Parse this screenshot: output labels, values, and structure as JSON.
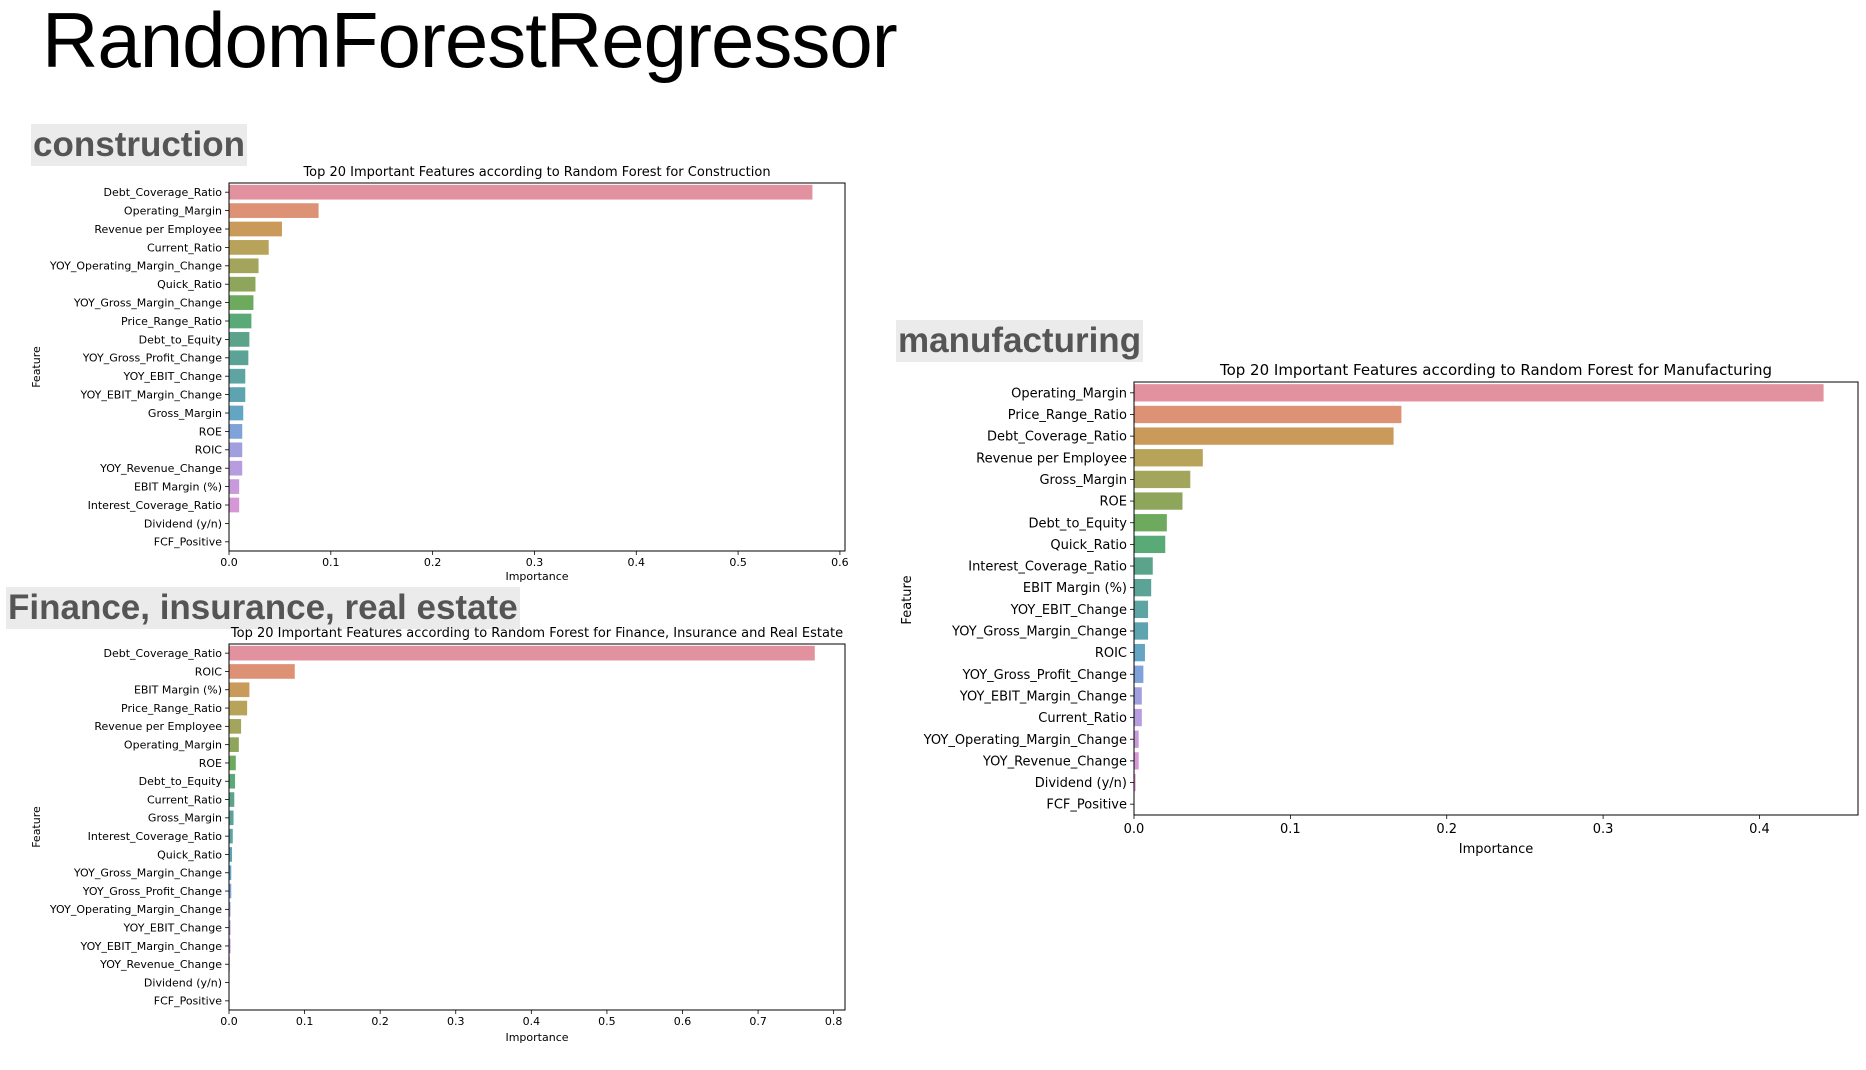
{
  "slide": {
    "title": "RandomForestRegressor"
  },
  "sections": {
    "construction": "construction",
    "finance": "Finance, insurance, real estate",
    "manufacturing": "manufacturing"
  },
  "palette": [
    "#e1929e",
    "#dd9175",
    "#c99a5a",
    "#b7a35a",
    "#a4a55d",
    "#8ea65b",
    "#6eaa5e",
    "#5aaa78",
    "#5ba48b",
    "#5ca397",
    "#5da4a3",
    "#5ea4b0",
    "#63a5c3",
    "#7fa2d8",
    "#a29fdf",
    "#b79ddf",
    "#c79adc",
    "#d597d5",
    "#dd93c8",
    "#e190b4"
  ],
  "chart_data": [
    {
      "id": "construction",
      "type": "bar",
      "orientation": "horizontal",
      "title": "Top 20 Important Features according to Random Forest for Construction",
      "xlabel": "Importance",
      "ylabel": "Feature",
      "xlim": [
        0,
        0.605
      ],
      "xticks": [
        0,
        0.1,
        0.2,
        0.3,
        0.4,
        0.5,
        0.6
      ],
      "xtick_labels": [
        "0.0",
        "0.1",
        "0.2",
        "0.3",
        "0.4",
        "0.5",
        "0.6"
      ],
      "categories": [
        "Debt_Coverage_Ratio",
        "Operating_Margin",
        "Revenue per Employee",
        "Current_Ratio",
        "YOY_Operating_Margin_Change",
        "Quick_Ratio",
        "YOY_Gross_Margin_Change",
        "Price_Range_Ratio",
        "Debt_to_Equity",
        "YOY_Gross_Profit_Change",
        "YOY_EBIT_Change",
        "YOY_EBIT_Margin_Change",
        "Gross_Margin",
        "ROE",
        "ROIC",
        "YOY_Revenue_Change",
        "EBIT Margin (%)",
        "Interest_Coverage_Ratio",
        "Dividend (y/n)",
        "FCF_Positive"
      ],
      "values": [
        0.573,
        0.088,
        0.052,
        0.039,
        0.029,
        0.026,
        0.024,
        0.022,
        0.02,
        0.019,
        0.016,
        0.016,
        0.014,
        0.013,
        0.013,
        0.013,
        0.01,
        0.01,
        0.0,
        0.0
      ]
    },
    {
      "id": "finance",
      "type": "bar",
      "orientation": "horizontal",
      "title": "Top 20 Important Features according to Random Forest for Finance, Insurance and Real Estate",
      "xlabel": "Importance",
      "ylabel": "Feature",
      "xlim": [
        0,
        0.815
      ],
      "xticks": [
        0,
        0.1,
        0.2,
        0.3,
        0.4,
        0.5,
        0.6,
        0.7,
        0.8
      ],
      "xtick_labels": [
        "0.0",
        "0.1",
        "0.2",
        "0.3",
        "0.4",
        "0.5",
        "0.6",
        "0.7",
        "0.8"
      ],
      "categories": [
        "Debt_Coverage_Ratio",
        "ROIC",
        "EBIT Margin (%)",
        "Price_Range_Ratio",
        "Revenue per Employee",
        "Operating_Margin",
        "ROE",
        "Debt_to_Equity",
        "Current_Ratio",
        "Gross_Margin",
        "Interest_Coverage_Ratio",
        "Quick_Ratio",
        "YOY_Gross_Margin_Change",
        "YOY_Gross_Profit_Change",
        "YOY_Operating_Margin_Change",
        "YOY_EBIT_Change",
        "YOY_EBIT_Margin_Change",
        "YOY_Revenue_Change",
        "Dividend (y/n)",
        "FCF_Positive"
      ],
      "values": [
        0.775,
        0.087,
        0.027,
        0.024,
        0.016,
        0.013,
        0.009,
        0.008,
        0.007,
        0.006,
        0.005,
        0.004,
        0.003,
        0.003,
        0.002,
        0.002,
        0.002,
        0.001,
        0.0,
        0.0
      ]
    },
    {
      "id": "manufacturing",
      "type": "bar",
      "orientation": "horizontal",
      "title": "Top 20 Important Features according to Random Forest for Manufacturing",
      "xlabel": "Importance",
      "ylabel": "Feature",
      "xlim": [
        0,
        0.463
      ],
      "xticks": [
        0,
        0.1,
        0.2,
        0.3,
        0.4
      ],
      "xtick_labels": [
        "0.0",
        "0.1",
        "0.2",
        "0.3",
        "0.4"
      ],
      "categories": [
        "Operating_Margin",
        "Price_Range_Ratio",
        "Debt_Coverage_Ratio",
        "Revenue per Employee",
        "Gross_Margin",
        "ROE",
        "Debt_to_Equity",
        "Quick_Ratio",
        "Interest_Coverage_Ratio",
        "EBIT Margin (%)",
        "YOY_EBIT_Change",
        "YOY_Gross_Margin_Change",
        "ROIC",
        "YOY_Gross_Profit_Change",
        "YOY_EBIT_Margin_Change",
        "Current_Ratio",
        "YOY_Operating_Margin_Change",
        "YOY_Revenue_Change",
        "Dividend (y/n)",
        "FCF_Positive"
      ],
      "values": [
        0.441,
        0.171,
        0.166,
        0.044,
        0.036,
        0.031,
        0.021,
        0.02,
        0.012,
        0.011,
        0.009,
        0.009,
        0.007,
        0.006,
        0.005,
        0.005,
        0.003,
        0.003,
        0.001,
        0.0
      ]
    }
  ]
}
